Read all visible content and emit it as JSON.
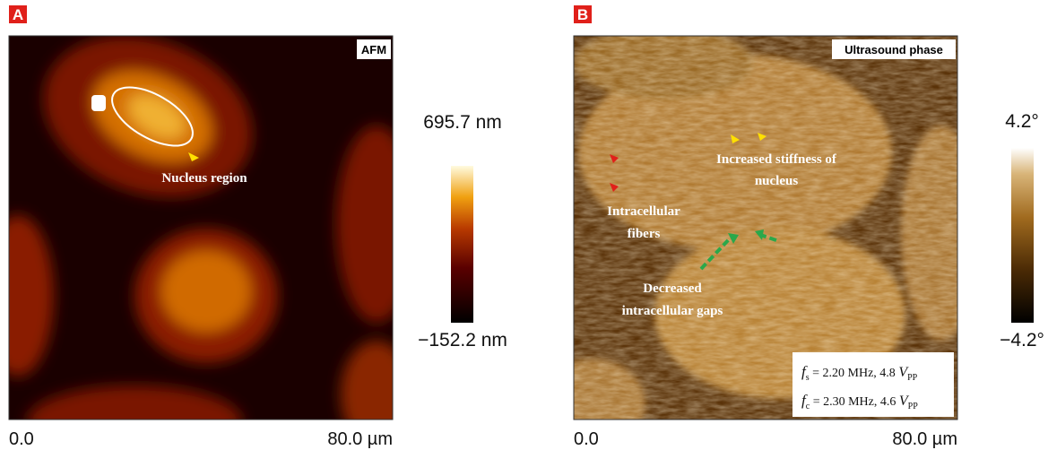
{
  "panels": [
    {
      "label": "A",
      "badge": "AFM",
      "annotations": [
        {
          "lines": [
            "Nucleus region"
          ]
        }
      ],
      "colorbar": {
        "max": "695.7 nm",
        "min": "−152.2 nm"
      },
      "axis": {
        "start": "0.0",
        "end": "80.0 µm"
      }
    },
    {
      "label": "B",
      "badge": "Ultrasound phase",
      "annotations": [
        {
          "lines": [
            "Increased stiffness of",
            "nucleus"
          ]
        },
        {
          "lines": [
            "Intracellular",
            "fibers"
          ]
        },
        {
          "lines": [
            "Decreased",
            "intracellular gaps"
          ]
        }
      ],
      "parameters": [
        {
          "symbol": "f",
          "symbol_sub": "s",
          "text": " = 2.20 MHz, 4.8 ",
          "unit": "V",
          "unit_sub": "PP"
        },
        {
          "symbol": "f",
          "symbol_sub": "c",
          "text": " = 2.30 MHz, 4.6 ",
          "unit": "V",
          "unit_sub": "PP"
        }
      ],
      "colorbar": {
        "max": "4.2°",
        "min": "−4.2°"
      },
      "axis": {
        "start": "0.0",
        "end": "80.0 µm"
      }
    }
  ]
}
